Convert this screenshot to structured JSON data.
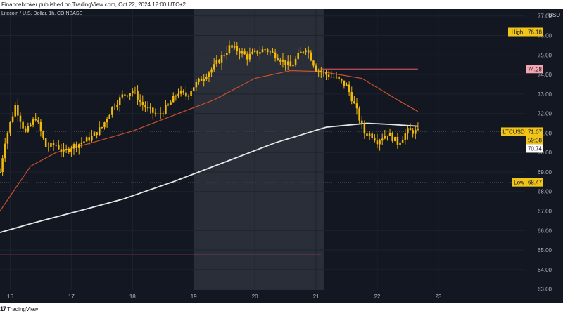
{
  "banner": {
    "text": "Financebroker published on TradingView.com, Oct 22, 2024 12:00 UTC+2"
  },
  "symbol": {
    "title": "Litecoin / U.S. Dollar, 1h, COINBASE"
  },
  "currency": "USD",
  "colors": {
    "background": "#131722",
    "up_candle": "#f0b90b",
    "ma_fast": "#c7502a",
    "ma_slow": "#e6e6e6",
    "highlight_zone": "#2a2e39",
    "resistance_line": "#c44d5c",
    "support_line": "#c44d5c",
    "axis_text": "#b2b5be"
  },
  "badges": {
    "high": {
      "label": "High",
      "value": "76.18",
      "color": "#f0c419"
    },
    "resistance": {
      "value": "74.28",
      "color": "#f4a6b0"
    },
    "current": {
      "label": "LTCUSD",
      "value": "71.07",
      "countdown": "59:38",
      "color": "#f0c419"
    },
    "prev_close": {
      "value": "70.74",
      "color": "#ffffff"
    },
    "low": {
      "label": "Low",
      "value": "68.47",
      "color": "#f0c419"
    }
  },
  "chart_data": {
    "type": "candlestick",
    "ylim": [
      62.95,
      77.35
    ],
    "y_ticks": [
      "77.00",
      "76.00",
      "75.00",
      "74.00",
      "73.00",
      "72.00",
      "71.00",
      "70.00",
      "69.00",
      "68.00",
      "67.00",
      "66.00",
      "65.00",
      "64.00",
      "63.00"
    ],
    "x_ticks": [
      "16",
      "17",
      "18",
      "19",
      "20",
      "21",
      "22",
      "23"
    ],
    "x_tick_hours": [
      12,
      36,
      60,
      84,
      108,
      132,
      156,
      180
    ],
    "x_range_hours": [
      8,
      214
    ],
    "last_candle_hour": 172,
    "highlight_zone_hours": [
      84,
      135
    ],
    "resistance_level": {
      "value": 74.28,
      "from_hour": 134,
      "to_hour": 172
    },
    "support_level": {
      "value": 64.8,
      "from_hour": 8,
      "to_hour": 134
    },
    "dotted_levels": [
      76.18,
      68.47,
      71.07
    ],
    "keypoints_hours": [
      8,
      10,
      14,
      18,
      22,
      26,
      30,
      33,
      36,
      40,
      44,
      48,
      52,
      56,
      60,
      63,
      66,
      70,
      74,
      78,
      81,
      84,
      88,
      92,
      95,
      98,
      102,
      105,
      108,
      112,
      116,
      120,
      122,
      126,
      128,
      132,
      136,
      140,
      144,
      146,
      148,
      151,
      154,
      156,
      160,
      164,
      168,
      172
    ],
    "keypoints_close": [
      69.0,
      70.6,
      72.4,
      71.0,
      71.8,
      70.3,
      70.4,
      70.0,
      70.3,
      70.5,
      70.8,
      71.3,
      72.3,
      72.9,
      73.2,
      72.6,
      72.2,
      71.9,
      72.4,
      73.1,
      72.9,
      73.4,
      73.9,
      74.4,
      74.9,
      75.4,
      75.2,
      74.9,
      75.1,
      75.3,
      75.0,
      74.6,
      74.4,
      75.1,
      75.4,
      74.3,
      74.0,
      73.8,
      73.4,
      72.8,
      72.1,
      71.0,
      70.9,
      70.6,
      71.0,
      70.5,
      71.1,
      71.07
    ],
    "ma_fast": {
      "hours": [
        8,
        20,
        30,
        44,
        60,
        76,
        92,
        108,
        122,
        134,
        150,
        164,
        172
      ],
      "values": [
        67.0,
        69.3,
        70.0,
        70.5,
        71.1,
        71.9,
        72.7,
        73.8,
        74.2,
        74.15,
        73.8,
        72.7,
        72.1
      ]
    },
    "ma_slow": {
      "hours": [
        8,
        20,
        36,
        56,
        76,
        96,
        116,
        136,
        152,
        160,
        172
      ],
      "values": [
        65.9,
        66.35,
        66.9,
        67.6,
        68.5,
        69.5,
        70.5,
        71.3,
        71.5,
        71.45,
        71.35
      ]
    }
  },
  "footer": {
    "brand": "TradingView"
  }
}
